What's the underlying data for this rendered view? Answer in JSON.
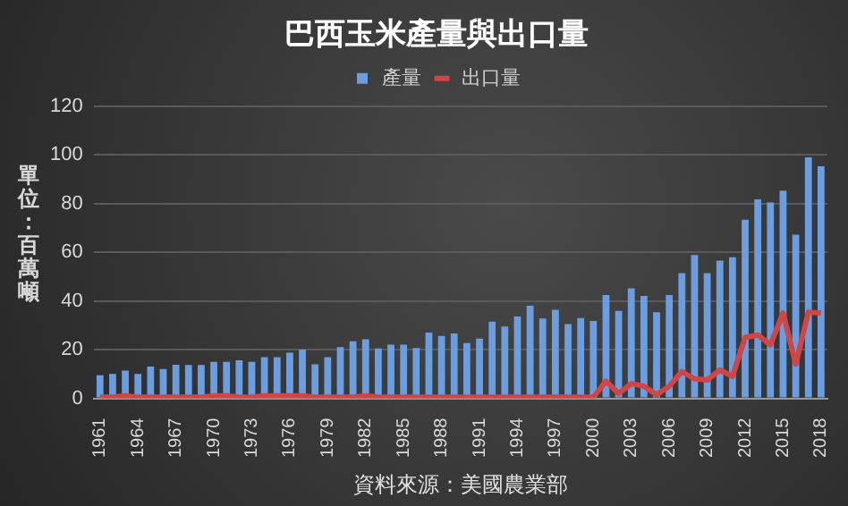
{
  "chart_data": {
    "type": "bar",
    "title": "巴西玉米產量與出口量",
    "ylabel": "單位：百萬噸",
    "annotations": [
      "資料來源：美國農業部"
    ],
    "categories": [
      "1961",
      null,
      null,
      "1964",
      null,
      null,
      "1967",
      null,
      null,
      "1970",
      null,
      null,
      "1973",
      null,
      null,
      "1976",
      null,
      null,
      "1979",
      null,
      null,
      "1982",
      null,
      null,
      "1985",
      null,
      null,
      "1988",
      null,
      null,
      "1991",
      null,
      null,
      "1994",
      null,
      null,
      "1997",
      null,
      null,
      "2000",
      null,
      null,
      "2003",
      null,
      null,
      "2006",
      null,
      null,
      "2009",
      null,
      null,
      "2012",
      null,
      null,
      "2015",
      null,
      null,
      "2018"
    ],
    "series": [
      {
        "name": "產量",
        "color": "#6a9ee0",
        "values": [
          9.5,
          10,
          11.4,
          10,
          13,
          12,
          13.8,
          13.7,
          13.7,
          15,
          15,
          15.6,
          15,
          16.9,
          16.9,
          18.7,
          20,
          14,
          16.9,
          21,
          23.4,
          24.2,
          20.5,
          22,
          22,
          20.7,
          27,
          25.6,
          26.6,
          22.7,
          24.5,
          31.5,
          29.5,
          33.6,
          38,
          32.8,
          36.4,
          30.5,
          33,
          31.8,
          42.4,
          35.9,
          45.2,
          42.1,
          35.4,
          42.4,
          51.4,
          58.9,
          51.4,
          56.6,
          57.9,
          73.4,
          81.7,
          80.4,
          85.3,
          67.2,
          99,
          95.3
        ]
      },
      {
        "name": "出口量",
        "type": "line",
        "color": "#d04545",
        "values": [
          0.5,
          0.5,
          1,
          0.5,
          0.5,
          0.5,
          0.5,
          0.5,
          0.5,
          1,
          1,
          0.5,
          0.5,
          1,
          1,
          1,
          1,
          0.5,
          0.5,
          0.5,
          0.5,
          1,
          0.5,
          0.5,
          0.5,
          0.5,
          0.5,
          0.5,
          0.5,
          0.5,
          0.5,
          0.5,
          0.5,
          0.5,
          0.5,
          0.5,
          0.5,
          0.5,
          0.5,
          0.5,
          7,
          2,
          6,
          5,
          1.5,
          5,
          11,
          8,
          7.5,
          11.6,
          9,
          25,
          26,
          22,
          35,
          14,
          35.4,
          35
        ]
      }
    ],
    "ylim": [
      0,
      120
    ],
    "yticks": [
      0,
      20,
      40,
      60,
      80,
      100,
      120
    ],
    "grid": "y",
    "legend": "top",
    "marker": "none",
    "line_style": "solid"
  }
}
